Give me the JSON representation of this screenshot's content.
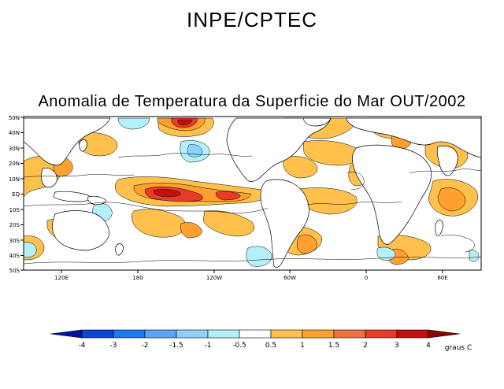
{
  "header": {
    "institution": "INPE/CPTEC",
    "title": "Anomalia de Temperatura da Superficie do Mar OUT/2002"
  },
  "map": {
    "lat_labels": [
      "50N",
      "40N",
      "30N",
      "20N",
      "10N",
      "EQ",
      "10S",
      "20S",
      "30S",
      "40S",
      "50S"
    ],
    "lon_labels": [
      "120E",
      "180",
      "120W",
      "60W",
      "0",
      "60E"
    ],
    "colors": {
      "ocean_neutral": "#ffffff",
      "warm_05": "#ffc04c",
      "warm_1": "#ffa030",
      "warm_15": "#f07040",
      "warm_2": "#e83c28",
      "warm_3": "#c01010",
      "cold_05": "#b4f0fa",
      "cold_1": "#8cd2fa",
      "cold_15": "#5aa5f5"
    }
  },
  "colorbar": {
    "tick_labels": [
      "-4",
      "-3",
      "-2",
      "-1.5",
      "-1",
      "-0.5",
      "0.5",
      "1",
      "1.5",
      "2",
      "3",
      "4"
    ],
    "unit_label": "graus C",
    "colors": [
      "#0014a0",
      "#0a46d2",
      "#1e78f0",
      "#5aa5f5",
      "#8cd2fa",
      "#b4f0fa",
      "#ffffff",
      "#ffc04c",
      "#ffa030",
      "#f07040",
      "#e83c28",
      "#c01010",
      "#8c0000"
    ]
  }
}
